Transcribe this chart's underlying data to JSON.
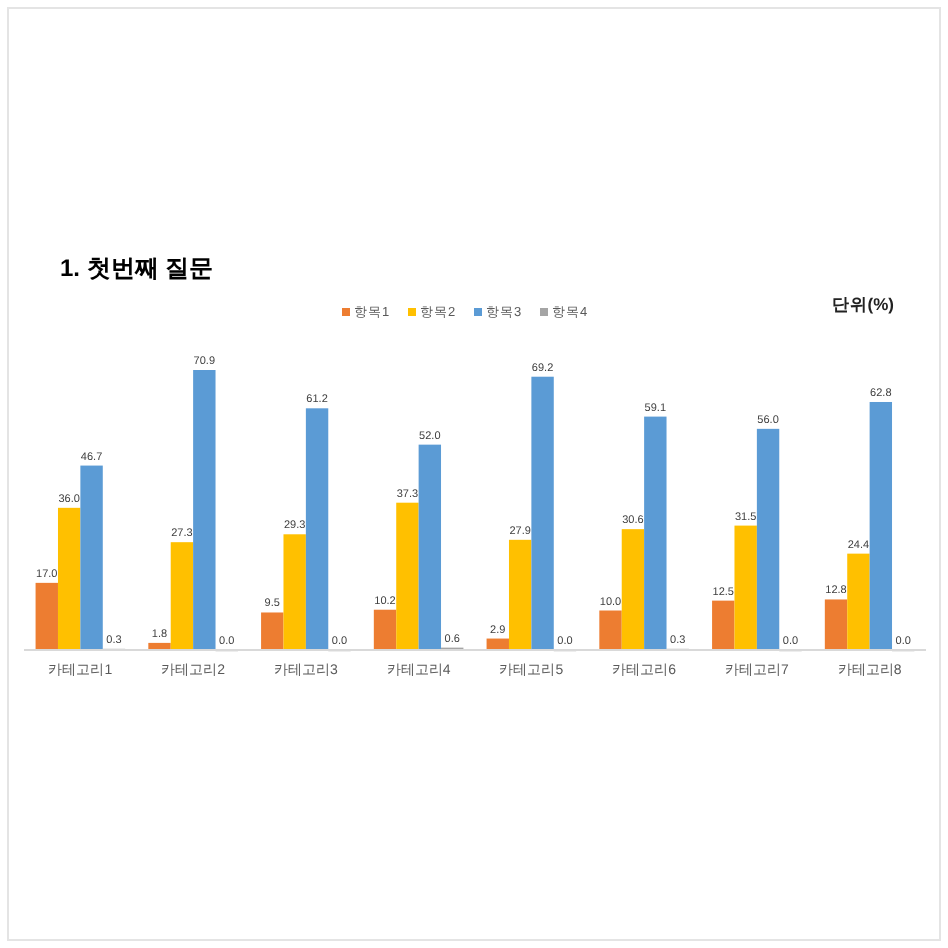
{
  "chart_data": {
    "type": "bar",
    "title": "1. 첫번째 질문",
    "annotations": [
      "단위(%)"
    ],
    "categories": [
      "카테고리1",
      "카테고리2",
      "카테고리3",
      "카테고리4",
      "카테고리5",
      "카테고리6",
      "카테고리7",
      "카테고리8"
    ],
    "series": [
      {
        "name": "항목1",
        "color": "#ed7d31",
        "values": [
          17.0,
          1.8,
          9.5,
          10.2,
          2.9,
          10.0,
          12.5,
          12.8
        ],
        "value_labels": [
          "17.0",
          "1.8",
          "9.5",
          "10.2",
          "2.9",
          "10.0",
          "12.5",
          "12.8"
        ]
      },
      {
        "name": "항목2",
        "color": "#ffc000",
        "values": [
          36.0,
          27.3,
          29.3,
          37.3,
          27.9,
          30.6,
          31.5,
          24.4
        ],
        "value_labels": [
          "36.0",
          "27.3",
          "29.3",
          "37.3",
          "27.9",
          "30.6",
          "31.5",
          "24.4"
        ]
      },
      {
        "name": "항목3",
        "color": "#5b9bd5",
        "values": [
          46.7,
          70.9,
          61.2,
          52.0,
          69.2,
          59.1,
          56.0,
          62.8
        ],
        "value_labels": [
          "46.7",
          "70.9",
          "61.2",
          "52.0",
          "69.2",
          "59.1",
          "56.0",
          "62.8"
        ]
      },
      {
        "name": "항목4",
        "color": "#a5a5a5",
        "values": [
          0.3,
          0.0,
          0.0,
          0.6,
          0.0,
          0.3,
          0.0,
          0.0
        ],
        "value_labels": [
          "0.3",
          "0.0",
          "0.0",
          "0.6",
          "0.0",
          "0.3",
          "0.0",
          "0.0"
        ]
      }
    ],
    "legend": "top",
    "grid": false
  }
}
